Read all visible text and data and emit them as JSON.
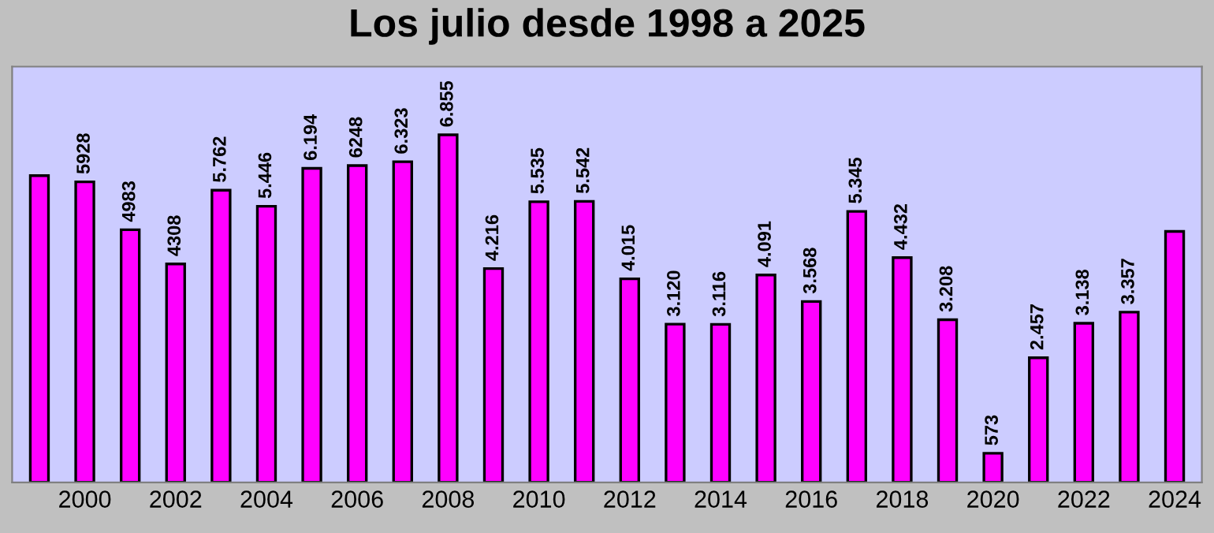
{
  "chart_data": {
    "type": "bar",
    "title": "Los julio desde 1998 a 2025",
    "categories": [
      null,
      "2000",
      null,
      "2002",
      null,
      "2004",
      null,
      "2006",
      null,
      "2008",
      null,
      "2010",
      null,
      "2012",
      null,
      "2014",
      null,
      "2016",
      null,
      "2018",
      null,
      "2020",
      null,
      "2022",
      null,
      "2024"
    ],
    "values": [
      6050,
      5928,
      4983,
      4308,
      5762,
      5446,
      6194,
      6248,
      6323,
      6855,
      4216,
      5535,
      5542,
      4015,
      3120,
      3116,
      4091,
      3568,
      5345,
      4432,
      3208,
      573,
      2457,
      3138,
      3357,
      4950
    ],
    "value_labels": [
      null,
      "5928",
      "4983",
      "4308",
      "5.762",
      "5.446",
      "6.194",
      "6248",
      "6.323",
      "6.855",
      "4.216",
      "5.535",
      "5.542",
      "4.015",
      "3.120",
      "3.116",
      "4.091",
      "3.568",
      "5.345",
      "4.432",
      "3.208",
      "573",
      "2.457",
      "3.138",
      "3.357",
      null
    ],
    "color": "#ff00ff",
    "ylim": [
      0,
      8200
    ],
    "tick_labels": "x",
    "grid": false
  }
}
